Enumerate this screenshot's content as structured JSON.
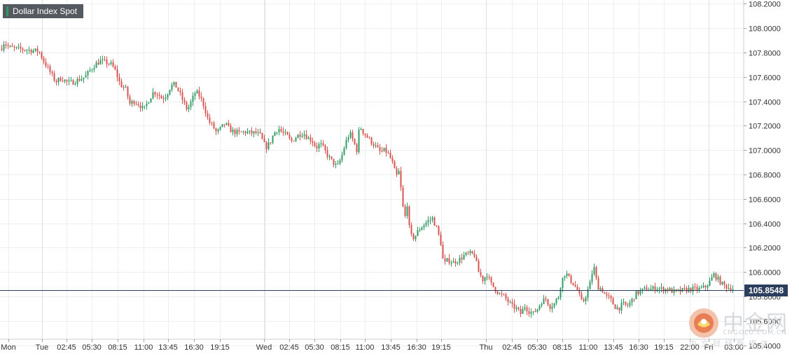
{
  "legend": {
    "label": "Dollar Index Spot"
  },
  "colors": {
    "up": "#2e9c63",
    "down": "#d9534f",
    "last_line": "#2c3e5d",
    "grid": "#eceef0",
    "axis_text": "#333333"
  },
  "watermark": {
    "cn": "中金网",
    "en": "CNGOLD.COM.CN",
    "tag": "中文财经新媒体"
  },
  "chart_data": {
    "type": "candlestick",
    "title": "Dollar Index Spot",
    "ylim": [
      105.45,
      108.23
    ],
    "y_ticks": [
      "108.2000",
      "108.0000",
      "107.8000",
      "107.6000",
      "107.4000",
      "107.2000",
      "107.0000",
      "106.8000",
      "106.6000",
      "106.4000",
      "106.2000",
      "106.0000",
      "105.8000",
      "105.6000",
      "105.4000"
    ],
    "x_ticks": [
      "Mon",
      "Tue",
      "02:45",
      "05:30",
      "08:15",
      "11:00",
      "13:45",
      "16:30",
      "19:15",
      "Wed",
      "02:45",
      "05:30",
      "08:15",
      "11:00",
      "13:45",
      "16:30",
      "19:15",
      "Thu",
      "02:45",
      "05:30",
      "08:15",
      "11:00",
      "13:45",
      "16:30",
      "19:15",
      "22:00",
      "Fri",
      "03:00"
    ],
    "day_separators": [
      "Tue",
      "Wed",
      "Thu",
      "Fri"
    ],
    "last_price": {
      "value": 105.8548,
      "label": "105.8548"
    },
    "grid": true,
    "path": [
      [
        0,
        107.83
      ],
      [
        4,
        107.88
      ],
      [
        12,
        107.84
      ],
      [
        24,
        107.83
      ],
      [
        40,
        107.82
      ],
      [
        54,
        107.81
      ],
      [
        60,
        107.74
      ],
      [
        66,
        107.68
      ],
      [
        72,
        107.62
      ],
      [
        78,
        107.56
      ],
      [
        86,
        107.59
      ],
      [
        96,
        107.55
      ],
      [
        104,
        107.56
      ],
      [
        112,
        107.58
      ],
      [
        120,
        107.6
      ],
      [
        128,
        107.66
      ],
      [
        134,
        107.7
      ],
      [
        142,
        107.73
      ],
      [
        150,
        107.72
      ],
      [
        158,
        107.7
      ],
      [
        164,
        107.64
      ],
      [
        170,
        107.54
      ],
      [
        178,
        107.5
      ],
      [
        184,
        107.38
      ],
      [
        190,
        107.4
      ],
      [
        196,
        107.38
      ],
      [
        204,
        107.33
      ],
      [
        210,
        107.4
      ],
      [
        218,
        107.48
      ],
      [
        224,
        107.46
      ],
      [
        230,
        107.42
      ],
      [
        236,
        107.45
      ],
      [
        242,
        107.52
      ],
      [
        248,
        107.54
      ],
      [
        254,
        107.48
      ],
      [
        260,
        107.4
      ],
      [
        266,
        107.33
      ],
      [
        272,
        107.4
      ],
      [
        278,
        107.48
      ],
      [
        284,
        107.44
      ],
      [
        290,
        107.36
      ],
      [
        296,
        107.24
      ],
      [
        302,
        107.2
      ],
      [
        308,
        107.14
      ],
      [
        314,
        107.18
      ],
      [
        320,
        107.22
      ],
      [
        326,
        107.17
      ],
      [
        332,
        107.15
      ],
      [
        340,
        107.14
      ],
      [
        348,
        107.15
      ],
      [
        356,
        107.14
      ],
      [
        364,
        107.14
      ],
      [
        370,
        107.12
      ],
      [
        378,
        107.02
      ],
      [
        384,
        107.06
      ],
      [
        390,
        107.14
      ],
      [
        396,
        107.18
      ],
      [
        402,
        107.14
      ],
      [
        408,
        107.12
      ],
      [
        414,
        107.07
      ],
      [
        420,
        107.1
      ],
      [
        426,
        107.13
      ],
      [
        432,
        107.14
      ],
      [
        438,
        107.1
      ],
      [
        444,
        107.08
      ],
      [
        450,
        107.02
      ],
      [
        456,
        107.05
      ],
      [
        462,
        107.0
      ],
      [
        468,
        106.94
      ],
      [
        474,
        106.9
      ],
      [
        480,
        106.86
      ],
      [
        486,
        106.94
      ],
      [
        492,
        107.06
      ],
      [
        498,
        107.14
      ],
      [
        504,
        107.06
      ],
      [
        508,
        107.0
      ],
      [
        512,
        107.2
      ],
      [
        518,
        107.14
      ],
      [
        524,
        107.1
      ],
      [
        530,
        107.06
      ],
      [
        536,
        107.02
      ],
      [
        542,
        106.98
      ],
      [
        548,
        107.0
      ],
      [
        554,
        106.96
      ],
      [
        560,
        106.88
      ],
      [
        564,
        106.78
      ],
      [
        568,
        106.82
      ],
      [
        572,
        106.64
      ],
      [
        576,
        106.42
      ],
      [
        580,
        106.56
      ],
      [
        584,
        106.3
      ],
      [
        590,
        106.28
      ],
      [
        596,
        106.34
      ],
      [
        602,
        106.38
      ],
      [
        610,
        106.42
      ],
      [
        616,
        106.44
      ],
      [
        622,
        106.36
      ],
      [
        628,
        106.24
      ],
      [
        632,
        106.06
      ],
      [
        638,
        106.1
      ],
      [
        646,
        106.08
      ],
      [
        654,
        106.1
      ],
      [
        662,
        106.14
      ],
      [
        670,
        106.15
      ],
      [
        676,
        106.14
      ],
      [
        682,
        106.0
      ],
      [
        688,
        105.94
      ],
      [
        694,
        105.98
      ],
      [
        700,
        105.9
      ],
      [
        706,
        105.86
      ],
      [
        712,
        105.82
      ],
      [
        718,
        105.8
      ],
      [
        724,
        105.76
      ],
      [
        730,
        105.72
      ],
      [
        736,
        105.7
      ],
      [
        742,
        105.66
      ],
      [
        748,
        105.72
      ],
      [
        754,
        105.68
      ],
      [
        760,
        105.66
      ],
      [
        766,
        105.7
      ],
      [
        772,
        105.76
      ],
      [
        778,
        105.78
      ],
      [
        784,
        105.72
      ],
      [
        790,
        105.74
      ],
      [
        796,
        105.8
      ],
      [
        800,
        105.92
      ],
      [
        806,
        106.0
      ],
      [
        812,
        105.94
      ],
      [
        818,
        105.9
      ],
      [
        824,
        105.84
      ],
      [
        830,
        105.74
      ],
      [
        836,
        105.82
      ],
      [
        842,
        105.92
      ],
      [
        846,
        106.06
      ],
      [
        852,
        105.88
      ],
      [
        858,
        105.86
      ],
      [
        864,
        105.8
      ],
      [
        870,
        105.78
      ],
      [
        876,
        105.72
      ],
      [
        882,
        105.7
      ],
      [
        888,
        105.74
      ],
      [
        894,
        105.72
      ],
      [
        900,
        105.76
      ],
      [
        906,
        105.82
      ],
      [
        912,
        105.84
      ],
      [
        920,
        105.86
      ],
      [
        928,
        105.86
      ],
      [
        936,
        105.87
      ],
      [
        944,
        105.86
      ],
      [
        952,
        105.86
      ],
      [
        960,
        105.84
      ],
      [
        966,
        105.84
      ],
      [
        974,
        105.85
      ],
      [
        982,
        105.86
      ],
      [
        990,
        105.86
      ],
      [
        998,
        105.86
      ],
      [
        1006,
        105.88
      ],
      [
        1012,
        105.92
      ],
      [
        1018,
        105.98
      ],
      [
        1024,
        105.94
      ],
      [
        1030,
        105.9
      ],
      [
        1036,
        105.88
      ],
      [
        1042,
        105.87
      ],
      [
        1048,
        105.86
      ]
    ]
  }
}
